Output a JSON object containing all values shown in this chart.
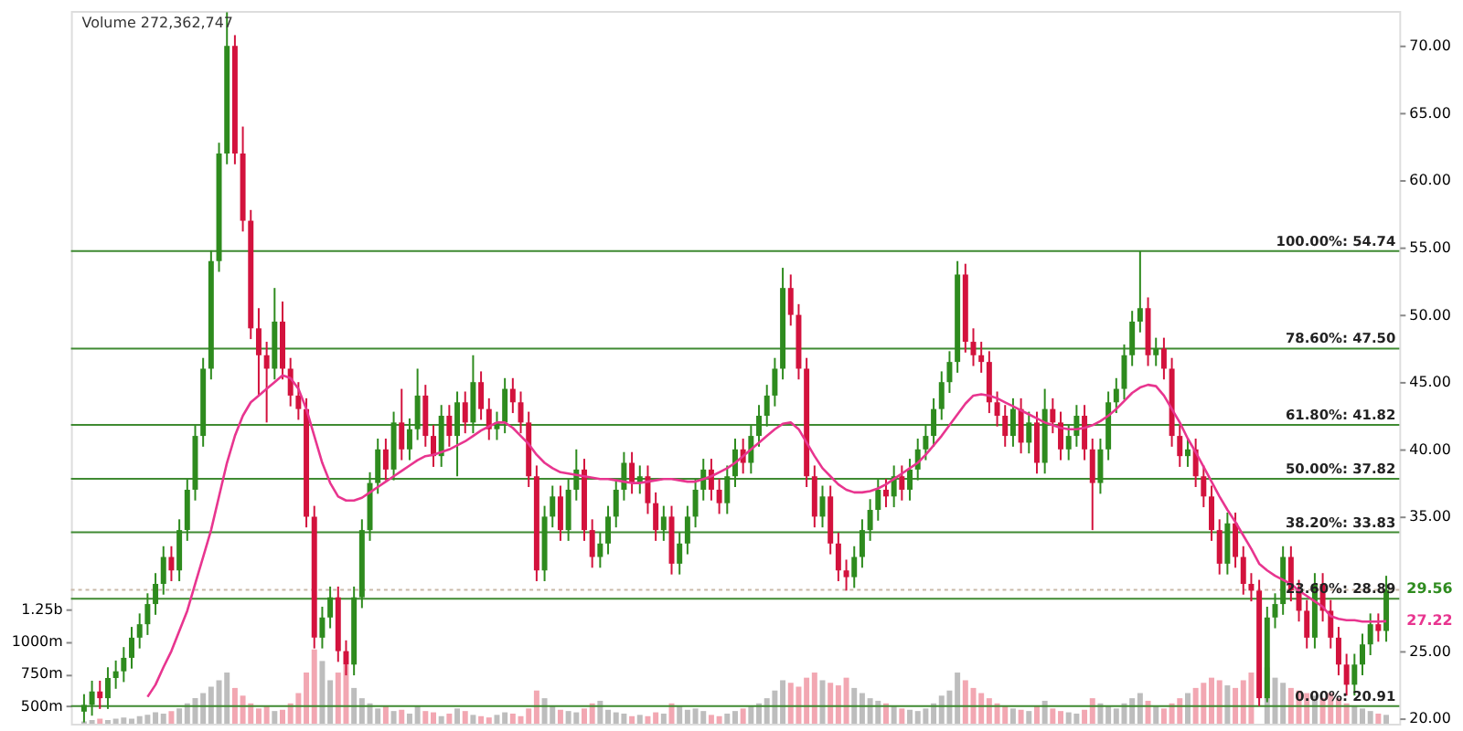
{
  "chart_data": {
    "type": "candlestick",
    "categories": [
      null,
      null,
      null,
      null,
      null,
      null,
      null,
      null,
      null,
      null,
      null,
      null,
      null,
      null,
      null,
      null,
      null,
      null,
      null,
      null,
      null,
      null,
      null,
      null,
      null,
      null,
      null,
      null,
      null,
      null,
      null,
      null,
      null,
      null,
      null,
      null,
      null,
      null,
      null,
      null,
      null,
      null,
      null,
      null,
      null,
      null,
      null,
      null,
      null,
      null,
      null,
      null,
      null,
      null,
      null,
      null,
      null,
      null,
      null,
      null,
      null,
      null,
      null,
      null,
      null,
      null,
      null,
      null,
      null,
      null,
      null,
      null,
      null,
      null,
      null,
      null,
      null,
      null,
      null,
      null,
      null,
      null,
      null,
      null,
      null,
      null,
      null,
      null,
      null,
      null,
      null,
      null,
      null,
      null,
      null,
      null,
      null,
      null,
      null,
      null,
      null,
      null,
      null,
      null,
      null,
      null,
      null,
      null,
      null,
      null,
      null,
      null,
      null,
      null,
      null,
      null,
      null,
      null,
      null,
      null,
      null,
      null,
      null,
      null,
      null,
      null,
      null,
      null,
      null,
      null,
      null,
      null,
      null,
      null,
      null,
      null,
      null,
      null,
      null,
      null,
      null,
      null,
      null,
      null,
      null,
      null,
      null,
      null,
      null,
      null,
      null,
      null,
      null,
      null,
      null,
      null,
      null,
      null,
      null,
      null,
      null,
      null,
      null,
      null,
      null
    ],
    "ohlc": [
      [
        20.5,
        21.8,
        19.7,
        21.0
      ],
      [
        21.0,
        22.8,
        20.2,
        22.0
      ],
      [
        22.0,
        22.8,
        20.7,
        21.5
      ],
      [
        21.5,
        23.8,
        20.7,
        23.0
      ],
      [
        23.0,
        24.3,
        22.2,
        23.5
      ],
      [
        23.5,
        25.3,
        22.7,
        24.5
      ],
      [
        24.5,
        26.8,
        23.7,
        26.0
      ],
      [
        26.0,
        27.8,
        25.2,
        27.0
      ],
      [
        27.0,
        29.3,
        26.2,
        28.5
      ],
      [
        28.5,
        30.8,
        27.7,
        30.0
      ],
      [
        30.0,
        32.8,
        29.2,
        32.0
      ],
      [
        32.0,
        32.8,
        30.2,
        31.0
      ],
      [
        31.0,
        34.8,
        30.2,
        34.0
      ],
      [
        34.0,
        37.8,
        33.2,
        37.0
      ],
      [
        37.0,
        41.8,
        36.2,
        41.0
      ],
      [
        41.0,
        46.8,
        40.2,
        46.0
      ],
      [
        46.0,
        54.8,
        45.2,
        54.0
      ],
      [
        54.0,
        62.8,
        53.2,
        62.0
      ],
      [
        62.0,
        72.5,
        61.2,
        70.0
      ],
      [
        70.0,
        70.8,
        61.2,
        62.0
      ],
      [
        62.0,
        64.0,
        56.2,
        57.0
      ],
      [
        57.0,
        57.8,
        48.2,
        49.0
      ],
      [
        49.0,
        50.5,
        44.0,
        47.0
      ],
      [
        47.0,
        48.0,
        42.0,
        46.0
      ],
      [
        46.0,
        52.0,
        45.2,
        49.5
      ],
      [
        49.5,
        51.0,
        45.2,
        46.0
      ],
      [
        46.0,
        46.8,
        43.2,
        44.0
      ],
      [
        44.0,
        45.0,
        42.2,
        43.0
      ],
      [
        43.0,
        43.8,
        34.2,
        35.0
      ],
      [
        35.0,
        35.8,
        25.2,
        26.0
      ],
      [
        26.0,
        28.3,
        25.2,
        27.5
      ],
      [
        27.5,
        29.8,
        26.7,
        29.0
      ],
      [
        29.0,
        29.8,
        24.2,
        25.0
      ],
      [
        25.0,
        25.8,
        23.2,
        24.0
      ],
      [
        24.0,
        29.8,
        23.2,
        29.0
      ],
      [
        29.0,
        34.8,
        28.2,
        34.0
      ],
      [
        34.0,
        38.3,
        33.2,
        37.5
      ],
      [
        37.5,
        40.8,
        36.7,
        40.0
      ],
      [
        40.0,
        40.8,
        37.7,
        38.5
      ],
      [
        38.5,
        42.8,
        37.7,
        42.0
      ],
      [
        42.0,
        44.5,
        39.2,
        40.0
      ],
      [
        40.0,
        42.3,
        39.2,
        41.5
      ],
      [
        41.5,
        46.0,
        40.7,
        44.0
      ],
      [
        44.0,
        44.8,
        40.2,
        41.0
      ],
      [
        41.0,
        41.8,
        38.7,
        39.5
      ],
      [
        39.5,
        43.3,
        38.7,
        42.5
      ],
      [
        42.5,
        43.3,
        40.2,
        41.0
      ],
      [
        41.0,
        44.3,
        38.0,
        43.5
      ],
      [
        43.5,
        44.3,
        41.2,
        42.0
      ],
      [
        42.0,
        47.0,
        41.2,
        45.0
      ],
      [
        45.0,
        45.8,
        42.2,
        43.0
      ],
      [
        43.0,
        43.8,
        40.7,
        41.5
      ],
      [
        41.5,
        42.8,
        40.7,
        42.0
      ],
      [
        42.0,
        45.3,
        41.2,
        44.5
      ],
      [
        44.5,
        45.3,
        42.7,
        43.5
      ],
      [
        43.5,
        44.3,
        41.2,
        42.0
      ],
      [
        42.0,
        42.8,
        37.2,
        38.0
      ],
      [
        38.0,
        38.8,
        30.2,
        31.0
      ],
      [
        31.0,
        35.8,
        30.2,
        35.0
      ],
      [
        35.0,
        37.3,
        34.2,
        36.5
      ],
      [
        36.5,
        37.3,
        33.2,
        34.0
      ],
      [
        34.0,
        37.8,
        33.2,
        37.0
      ],
      [
        37.0,
        40.0,
        36.2,
        38.5
      ],
      [
        38.5,
        39.3,
        33.2,
        34.0
      ],
      [
        34.0,
        34.8,
        31.2,
        32.0
      ],
      [
        32.0,
        33.8,
        31.2,
        33.0
      ],
      [
        33.0,
        35.8,
        32.2,
        35.0
      ],
      [
        35.0,
        37.8,
        34.2,
        37.0
      ],
      [
        37.0,
        39.8,
        36.2,
        39.0
      ],
      [
        39.0,
        39.8,
        36.7,
        37.5
      ],
      [
        37.5,
        38.8,
        36.7,
        38.0
      ],
      [
        38.0,
        38.8,
        35.2,
        36.0
      ],
      [
        36.0,
        36.8,
        33.2,
        34.0
      ],
      [
        34.0,
        35.8,
        33.2,
        35.0
      ],
      [
        35.0,
        35.8,
        30.7,
        31.5
      ],
      [
        31.5,
        33.8,
        30.7,
        33.0
      ],
      [
        33.0,
        35.8,
        32.2,
        35.0
      ],
      [
        35.0,
        37.8,
        34.2,
        37.0
      ],
      [
        37.0,
        39.3,
        36.2,
        38.5
      ],
      [
        38.5,
        39.3,
        36.2,
        37.0
      ],
      [
        37.0,
        37.8,
        35.2,
        36.0
      ],
      [
        36.0,
        38.8,
        35.2,
        38.0
      ],
      [
        38.0,
        40.8,
        37.2,
        40.0
      ],
      [
        40.0,
        40.8,
        38.2,
        39.0
      ],
      [
        39.0,
        41.8,
        38.2,
        41.0
      ],
      [
        41.0,
        43.3,
        40.2,
        42.5
      ],
      [
        42.5,
        44.8,
        41.7,
        44.0
      ],
      [
        44.0,
        46.8,
        43.2,
        46.0
      ],
      [
        46.0,
        53.5,
        45.2,
        52.0
      ],
      [
        52.0,
        53.0,
        49.2,
        50.0
      ],
      [
        50.0,
        50.8,
        45.2,
        46.0
      ],
      [
        46.0,
        46.8,
        37.2,
        38.0
      ],
      [
        38.0,
        38.8,
        34.2,
        35.0
      ],
      [
        35.0,
        37.3,
        34.2,
        36.5
      ],
      [
        36.5,
        37.3,
        32.2,
        33.0
      ],
      [
        33.0,
        33.8,
        30.2,
        31.0
      ],
      [
        31.0,
        31.8,
        29.5,
        30.5
      ],
      [
        30.5,
        32.8,
        29.7,
        32.0
      ],
      [
        32.0,
        34.8,
        31.2,
        34.0
      ],
      [
        34.0,
        36.3,
        33.2,
        35.5
      ],
      [
        35.5,
        37.8,
        34.7,
        37.0
      ],
      [
        37.0,
        37.8,
        35.7,
        36.5
      ],
      [
        36.5,
        38.8,
        35.7,
        38.0
      ],
      [
        38.0,
        38.8,
        36.2,
        37.0
      ],
      [
        37.0,
        39.3,
        36.2,
        38.5
      ],
      [
        38.5,
        40.8,
        37.7,
        40.0
      ],
      [
        40.0,
        41.8,
        39.2,
        41.0
      ],
      [
        41.0,
        43.8,
        40.2,
        43.0
      ],
      [
        43.0,
        45.8,
        42.2,
        45.0
      ],
      [
        45.0,
        47.3,
        44.2,
        46.5
      ],
      [
        46.5,
        54.0,
        45.7,
        53.0
      ],
      [
        53.0,
        53.8,
        47.2,
        48.0
      ],
      [
        48.0,
        49.0,
        46.2,
        47.0
      ],
      [
        47.0,
        48.0,
        45.7,
        46.5
      ],
      [
        46.5,
        47.3,
        42.7,
        43.5
      ],
      [
        43.5,
        44.3,
        41.7,
        42.5
      ],
      [
        42.5,
        43.3,
        40.2,
        41.0
      ],
      [
        41.0,
        43.8,
        40.2,
        43.0
      ],
      [
        43.0,
        43.8,
        39.7,
        40.5
      ],
      [
        40.5,
        42.8,
        39.7,
        42.0
      ],
      [
        42.0,
        42.8,
        38.2,
        39.0
      ],
      [
        39.0,
        44.5,
        38.2,
        43.0
      ],
      [
        43.0,
        43.8,
        41.2,
        42.0
      ],
      [
        42.0,
        42.8,
        39.2,
        40.0
      ],
      [
        40.0,
        41.8,
        39.2,
        41.0
      ],
      [
        41.0,
        43.3,
        40.2,
        42.5
      ],
      [
        42.5,
        43.3,
        39.2,
        40.0
      ],
      [
        40.0,
        40.8,
        34.0,
        37.5
      ],
      [
        37.5,
        40.8,
        36.7,
        40.0
      ],
      [
        40.0,
        44.3,
        39.2,
        43.5
      ],
      [
        43.5,
        45.3,
        42.7,
        44.5
      ],
      [
        44.5,
        47.8,
        43.7,
        47.0
      ],
      [
        47.0,
        50.3,
        46.2,
        49.5
      ],
      [
        49.5,
        54.74,
        48.7,
        50.5
      ],
      [
        50.5,
        51.3,
        46.2,
        47.0
      ],
      [
        47.0,
        48.3,
        46.2,
        47.5
      ],
      [
        47.5,
        48.3,
        45.2,
        46.0
      ],
      [
        46.0,
        46.8,
        40.2,
        41.0
      ],
      [
        41.0,
        41.8,
        38.7,
        39.5
      ],
      [
        39.5,
        40.8,
        38.7,
        40.0
      ],
      [
        40.0,
        40.8,
        37.2,
        38.0
      ],
      [
        38.0,
        38.8,
        35.7,
        36.5
      ],
      [
        36.5,
        37.3,
        33.2,
        34.0
      ],
      [
        34.0,
        34.8,
        30.7,
        31.5
      ],
      [
        31.5,
        35.3,
        30.7,
        34.5
      ],
      [
        34.5,
        35.3,
        31.2,
        32.0
      ],
      [
        32.0,
        32.8,
        29.2,
        30.0
      ],
      [
        30.0,
        30.8,
        28.7,
        29.5
      ],
      [
        29.5,
        30.3,
        20.91,
        21.5
      ],
      [
        21.5,
        28.3,
        21.2,
        27.5
      ],
      [
        27.5,
        29.3,
        26.7,
        28.5
      ],
      [
        28.5,
        32.8,
        27.7,
        32.0
      ],
      [
        32.0,
        32.8,
        28.7,
        29.5
      ],
      [
        29.5,
        30.3,
        27.2,
        28.0
      ],
      [
        28.0,
        28.8,
        25.2,
        26.0
      ],
      [
        26.0,
        30.8,
        25.2,
        30.0
      ],
      [
        30.0,
        30.8,
        27.2,
        28.0
      ],
      [
        28.0,
        28.8,
        25.2,
        26.0
      ],
      [
        26.0,
        26.8,
        23.2,
        24.0
      ],
      [
        24.0,
        24.8,
        21.7,
        22.5
      ],
      [
        22.5,
        24.8,
        21.7,
        24.0
      ],
      [
        24.0,
        26.3,
        23.2,
        25.5
      ],
      [
        25.5,
        27.8,
        24.7,
        27.0
      ],
      [
        27.0,
        27.8,
        25.7,
        26.5
      ],
      [
        26.5,
        30.6,
        25.7,
        29.56
      ]
    ],
    "colors": [
      "#2e8b1e",
      "#2e8b1e",
      "#d3123d",
      "#2e8b1e",
      "#2e8b1e",
      "#2e8b1e",
      "#2e8b1e",
      "#2e8b1e",
      "#2e8b1e",
      "#2e8b1e",
      "#2e8b1e",
      "#d3123d",
      "#2e8b1e",
      "#2e8b1e",
      "#2e8b1e",
      "#2e8b1e",
      "#2e8b1e",
      "#2e8b1e",
      "#2e8b1e",
      "#d3123d",
      "#d3123d",
      "#d3123d",
      "#d3123d",
      "#d3123d",
      "#2e8b1e",
      "#d3123d",
      "#d3123d",
      "#d3123d",
      "#d3123d",
      "#d3123d",
      "#2e8b1e",
      "#2e8b1e",
      "#d3123d",
      "#d3123d",
      "#2e8b1e",
      "#2e8b1e",
      "#2e8b1e",
      "#2e8b1e",
      "#d3123d",
      "#2e8b1e",
      "#d3123d",
      "#2e8b1e",
      "#2e8b1e",
      "#d3123d",
      "#d3123d",
      "#2e8b1e",
      "#d3123d",
      "#2e8b1e",
      "#d3123d",
      "#2e8b1e",
      "#d3123d",
      "#d3123d",
      "#2e8b1e",
      "#2e8b1e",
      "#d3123d",
      "#d3123d",
      "#d3123d",
      "#d3123d",
      "#2e8b1e",
      "#2e8b1e",
      "#d3123d",
      "#2e8b1e",
      "#2e8b1e",
      "#d3123d",
      "#d3123d",
      "#2e8b1e",
      "#2e8b1e",
      "#2e8b1e",
      "#2e8b1e",
      "#d3123d",
      "#2e8b1e",
      "#d3123d",
      "#d3123d",
      "#2e8b1e",
      "#d3123d",
      "#2e8b1e",
      "#2e8b1e",
      "#2e8b1e",
      "#2e8b1e",
      "#d3123d",
      "#d3123d",
      "#2e8b1e",
      "#2e8b1e",
      "#d3123d",
      "#2e8b1e",
      "#2e8b1e",
      "#2e8b1e",
      "#2e8b1e",
      "#2e8b1e",
      "#d3123d",
      "#d3123d",
      "#d3123d",
      "#d3123d",
      "#2e8b1e",
      "#d3123d",
      "#d3123d",
      "#d3123d",
      "#2e8b1e",
      "#2e8b1e",
      "#2e8b1e",
      "#2e8b1e",
      "#d3123d",
      "#2e8b1e",
      "#d3123d",
      "#2e8b1e",
      "#2e8b1e",
      "#2e8b1e",
      "#2e8b1e",
      "#2e8b1e",
      "#2e8b1e",
      "#2e8b1e",
      "#d3123d",
      "#d3123d",
      "#d3123d",
      "#d3123d",
      "#d3123d",
      "#d3123d",
      "#2e8b1e",
      "#d3123d",
      "#2e8b1e",
      "#d3123d",
      "#2e8b1e",
      "#d3123d",
      "#d3123d",
      "#2e8b1e",
      "#2e8b1e",
      "#d3123d",
      "#d3123d",
      "#2e8b1e",
      "#2e8b1e",
      "#2e8b1e",
      "#2e8b1e",
      "#2e8b1e",
      "#2e8b1e",
      "#d3123d",
      "#2e8b1e",
      "#d3123d",
      "#d3123d",
      "#d3123d",
      "#2e8b1e",
      "#d3123d",
      "#d3123d",
      "#d3123d",
      "#d3123d",
      "#2e8b1e",
      "#d3123d",
      "#d3123d",
      "#d3123d",
      "#d3123d",
      "#2e8b1e",
      "#2e8b1e",
      "#2e8b1e",
      "#d3123d",
      "#d3123d",
      "#d3123d",
      "#2e8b1e",
      "#d3123d",
      "#d3123d",
      "#d3123d",
      "#d3123d",
      "#2e8b1e",
      "#2e8b1e",
      "#2e8b1e",
      "#d3123d",
      "#2e8b1e"
    ],
    "ylim": [
      19.6,
      72.6
    ],
    "yticks": [
      {
        "value": 20,
        "label": "20.00"
      },
      {
        "value": 25,
        "label": "25.00"
      },
      {
        "value": 35,
        "label": "35.00"
      },
      {
        "value": 40,
        "label": "40.00"
      },
      {
        "value": 45,
        "label": "45.00"
      },
      {
        "value": 50,
        "label": "50.00"
      },
      {
        "value": 55,
        "label": "55.00"
      },
      {
        "value": 60,
        "label": "60.00"
      },
      {
        "value": 65,
        "label": "65.00"
      },
      {
        "value": 70,
        "label": "70.00"
      }
    ],
    "y2lim": [
      361000000.0,
      5917000000.0
    ],
    "y2ticks": [
      {
        "value": 500000000.0,
        "label": "500m"
      },
      {
        "value": 750000000.0,
        "label": "750m"
      },
      {
        "value": 1000000000.0,
        "label": "1000m"
      },
      {
        "value": 1250000000.0,
        "label": "1.25b"
      }
    ],
    "series": [
      {
        "type": "line",
        "color": "#e8358f",
        "values": [
          null,
          null,
          null,
          null,
          null,
          null,
          null,
          null,
          21.6,
          22.5,
          23.8,
          25.0,
          26.5,
          28.0,
          30.0,
          32.0,
          34.0,
          36.5,
          39.0,
          41.0,
          42.5,
          43.5,
          44.0,
          44.5,
          45.0,
          45.5,
          45.3,
          44.5,
          43.0,
          41.0,
          39.0,
          37.5,
          36.5,
          36.2,
          36.2,
          36.4,
          36.8,
          37.2,
          37.6,
          38.0,
          38.4,
          38.8,
          39.2,
          39.5,
          39.6,
          39.8,
          40.0,
          40.3,
          40.6,
          41.0,
          41.4,
          41.7,
          42.0,
          42.0,
          41.6,
          41.0,
          40.4,
          39.6,
          39.0,
          38.6,
          38.3,
          38.2,
          38.1,
          38.0,
          37.9,
          37.8,
          37.8,
          37.7,
          37.6,
          37.5,
          37.5,
          37.6,
          37.7,
          37.8,
          37.8,
          37.7,
          37.6,
          37.6,
          37.8,
          38.0,
          38.3,
          38.6,
          39.0,
          39.5,
          40.0,
          40.5,
          41.0,
          41.5,
          41.9,
          42.0,
          41.5,
          40.5,
          39.5,
          38.6,
          38.0,
          37.4,
          37.0,
          36.8,
          36.8,
          36.9,
          37.1,
          37.4,
          37.8,
          38.2,
          38.6,
          39.0,
          39.6,
          40.3,
          41.0,
          41.8,
          42.6,
          43.4,
          44.0,
          44.1,
          44.0,
          43.8,
          43.5,
          43.2,
          42.9,
          42.6,
          42.3,
          42.0,
          41.8,
          41.6,
          41.5,
          41.5,
          41.6,
          41.8,
          42.1,
          42.5,
          43.0,
          43.6,
          44.2,
          44.6,
          44.8,
          44.7,
          44.0,
          43.0,
          42.0,
          40.8,
          39.8,
          38.7,
          37.6,
          36.5,
          35.5,
          34.6,
          33.6,
          32.6,
          31.5,
          31.0,
          30.6,
          30.3,
          30.0,
          29.5,
          29.1,
          28.7,
          28.3,
          27.6,
          27.4,
          27.3,
          27.3,
          27.2,
          27.2,
          27.2,
          27.22
        ],
        "value_labels": [
          null,
          null,
          null,
          null,
          null,
          null,
          null,
          null,
          null,
          null,
          null,
          null,
          null,
          null,
          null,
          null,
          null,
          null,
          null,
          null,
          null,
          null,
          null,
          null,
          null,
          null,
          null,
          null,
          null,
          null,
          null,
          null,
          null,
          null,
          null,
          null,
          null,
          null,
          null,
          null,
          null,
          null,
          null,
          null,
          null,
          null,
          null,
          null,
          null,
          null,
          null,
          null,
          null,
          null,
          null,
          null,
          null,
          null,
          null,
          null,
          null,
          null,
          null,
          null,
          null,
          null,
          null,
          null,
          null,
          null,
          null,
          null,
          null,
          null,
          null,
          null,
          null,
          null,
          null,
          null,
          null,
          null,
          null,
          null,
          null,
          null,
          null,
          null,
          null,
          null,
          null,
          null,
          null,
          null,
          null,
          null,
          null,
          null,
          null,
          null,
          null,
          null,
          null,
          null,
          null,
          null,
          null,
          null,
          null,
          null,
          null,
          null,
          null,
          null,
          null,
          null,
          null,
          null,
          null,
          null,
          null,
          null,
          null,
          null,
          null,
          null,
          null,
          null,
          null,
          null,
          null,
          null,
          null,
          null,
          null,
          null,
          null,
          null,
          null,
          null,
          null,
          null,
          null,
          null,
          null,
          null,
          null,
          null,
          null,
          null,
          null,
          null,
          null,
          null,
          null,
          null,
          null,
          null,
          null,
          null,
          null,
          null,
          null,
          null,
          "27.22"
        ]
      },
      {
        "type": "bar",
        "axis": "y2",
        "values": [
          380000000.0,
          390000000.0,
          400000000.0,
          390000000.0,
          400000000.0,
          410000000.0,
          400000000.0,
          420000000.0,
          430000000.0,
          450000000.0,
          440000000.0,
          460000000.0,
          480000000.0,
          520000000.0,
          560000000.0,
          600000000.0,
          650000000.0,
          700000000.0,
          760000000.0,
          640000000.0,
          580000000.0,
          520000000.0,
          480000000.0,
          500000000.0,
          460000000.0,
          470000000.0,
          520000000.0,
          600000000.0,
          760000000.0,
          940000000.0,
          850000000.0,
          700000000.0,
          760000000.0,
          820000000.0,
          640000000.0,
          560000000.0,
          520000000.0,
          480000000.0,
          500000000.0,
          460000000.0,
          470000000.0,
          440000000.0,
          500000000.0,
          460000000.0,
          450000000.0,
          420000000.0,
          440000000.0,
          480000000.0,
          460000000.0,
          430000000.0,
          420000000.0,
          410000000.0,
          430000000.0,
          450000000.0,
          440000000.0,
          420000000.0,
          480000000.0,
          620000000.0,
          560000000.0,
          500000000.0,
          470000000.0,
          460000000.0,
          450000000.0,
          480000000.0,
          520000000.0,
          540000000.0,
          470000000.0,
          450000000.0,
          440000000.0,
          420000000.0,
          430000000.0,
          420000000.0,
          450000000.0,
          440000000.0,
          520000000.0,
          500000000.0,
          470000000.0,
          480000000.0,
          460000000.0,
          430000000.0,
          420000000.0,
          440000000.0,
          460000000.0,
          480000000.0,
          500000000.0,
          520000000.0,
          560000000.0,
          620000000.0,
          700000000.0,
          680000000.0,
          650000000.0,
          720000000.0,
          760000000.0,
          700000000.0,
          680000000.0,
          660000000.0,
          720000000.0,
          640000000.0,
          600000000.0,
          560000000.0,
          540000000.0,
          520000000.0,
          500000000.0,
          480000000.0,
          470000000.0,
          460000000.0,
          480000000.0,
          520000000.0,
          580000000.0,
          620000000.0,
          760000000.0,
          700000000.0,
          640000000.0,
          600000000.0,
          560000000.0,
          520000000.0,
          500000000.0,
          480000000.0,
          470000000.0,
          460000000.0,
          500000000.0,
          540000000.0,
          480000000.0,
          460000000.0,
          450000000.0,
          440000000.0,
          470000000.0,
          560000000.0,
          520000000.0,
          500000000.0,
          480000000.0,
          520000000.0,
          560000000.0,
          600000000.0,
          540000000.0,
          500000000.0,
          480000000.0,
          520000000.0,
          560000000.0,
          600000000.0,
          640000000.0,
          680000000.0,
          720000000.0,
          700000000.0,
          660000000.0,
          640000000.0,
          700000000.0,
          760000000.0,
          null,
          800000000.0,
          720000000.0,
          680000000.0,
          640000000.0,
          620000000.0,
          600000000.0,
          580000000.0,
          560000000.0,
          600000000.0,
          560000000.0,
          520000000.0,
          500000000.0,
          480000000.0,
          460000000.0,
          440000000.0,
          430000000.0
        ],
        "colors": [
          "#bdbdbd",
          "#bdbdbd",
          "#f2a7b2",
          "#bdbdbd",
          "#bdbdbd",
          "#bdbdbd",
          "#bdbdbd",
          "#bdbdbd",
          "#bdbdbd",
          "#bdbdbd",
          "#bdbdbd",
          "#f2a7b2",
          "#bdbdbd",
          "#bdbdbd",
          "#bdbdbd",
          "#bdbdbd",
          "#bdbdbd",
          "#bdbdbd",
          "#bdbdbd",
          "#f2a7b2",
          "#f2a7b2",
          "#f2a7b2",
          "#f2a7b2",
          "#f2a7b2",
          "#bdbdbd",
          "#f2a7b2",
          "#f2a7b2",
          "#f2a7b2",
          "#f2a7b2",
          "#f2a7b2",
          "#bdbdbd",
          "#bdbdbd",
          "#f2a7b2",
          "#f2a7b2",
          "#bdbdbd",
          "#bdbdbd",
          "#bdbdbd",
          "#bdbdbd",
          "#f2a7b2",
          "#bdbdbd",
          "#f2a7b2",
          "#bdbdbd",
          "#bdbdbd",
          "#f2a7b2",
          "#f2a7b2",
          "#bdbdbd",
          "#f2a7b2",
          "#bdbdbd",
          "#f2a7b2",
          "#bdbdbd",
          "#f2a7b2",
          "#f2a7b2",
          "#bdbdbd",
          "#bdbdbd",
          "#f2a7b2",
          "#f2a7b2",
          "#f2a7b2",
          "#f2a7b2",
          "#bdbdbd",
          "#bdbdbd",
          "#f2a7b2",
          "#bdbdbd",
          "#bdbdbd",
          "#f2a7b2",
          "#f2a7b2",
          "#bdbdbd",
          "#bdbdbd",
          "#bdbdbd",
          "#bdbdbd",
          "#f2a7b2",
          "#bdbdbd",
          "#f2a7b2",
          "#f2a7b2",
          "#bdbdbd",
          "#f2a7b2",
          "#bdbdbd",
          "#bdbdbd",
          "#bdbdbd",
          "#bdbdbd",
          "#f2a7b2",
          "#f2a7b2",
          "#bdbdbd",
          "#bdbdbd",
          "#f2a7b2",
          "#bdbdbd",
          "#bdbdbd",
          "#bdbdbd",
          "#bdbdbd",
          "#bdbdbd",
          "#f2a7b2",
          "#f2a7b2",
          "#f2a7b2",
          "#f2a7b2",
          "#bdbdbd",
          "#f2a7b2",
          "#f2a7b2",
          "#f2a7b2",
          "#bdbdbd",
          "#bdbdbd",
          "#bdbdbd",
          "#bdbdbd",
          "#f2a7b2",
          "#bdbdbd",
          "#f2a7b2",
          "#bdbdbd",
          "#bdbdbd",
          "#bdbdbd",
          "#bdbdbd",
          "#bdbdbd",
          "#bdbdbd",
          "#bdbdbd",
          "#f2a7b2",
          "#f2a7b2",
          "#f2a7b2",
          "#f2a7b2",
          "#f2a7b2",
          "#f2a7b2",
          "#bdbdbd",
          "#f2a7b2",
          "#bdbdbd",
          "#f2a7b2",
          "#bdbdbd",
          "#f2a7b2",
          "#f2a7b2",
          "#bdbdbd",
          "#bdbdbd",
          "#f2a7b2",
          "#f2a7b2",
          "#bdbdbd",
          "#bdbdbd",
          "#bdbdbd",
          "#bdbdbd",
          "#bdbdbd",
          "#bdbdbd",
          "#f2a7b2",
          "#bdbdbd",
          "#f2a7b2",
          "#f2a7b2",
          "#f2a7b2",
          "#bdbdbd",
          "#f2a7b2",
          "#f2a7b2",
          "#f2a7b2",
          "#f2a7b2",
          "#bdbdbd",
          "#f2a7b2",
          "#f2a7b2",
          "#f2a7b2",
          "#f2a7b2",
          "#bdbdbd",
          "#bdbdbd",
          "#bdbdbd",
          "#f2a7b2",
          "#f2a7b2",
          "#f2a7b2",
          "#bdbdbd",
          "#f2a7b2",
          "#f2a7b2",
          "#f2a7b2",
          "#f2a7b2",
          "#bdbdbd",
          "#bdbdbd",
          "#bdbdbd",
          "#f2a7b2",
          "#bdbdbd"
        ]
      }
    ],
    "ref_lines": [
      {
        "axis": "y",
        "value": 54.74,
        "label": "100.00%: 54.74",
        "color": "#3f8a32"
      },
      {
        "axis": "y",
        "value": 47.5,
        "label": "78.60%: 47.50",
        "color": "#3f8a32"
      },
      {
        "axis": "y",
        "value": 41.82,
        "label": "61.80%: 41.82",
        "color": "#3f8a32"
      },
      {
        "axis": "y",
        "value": 37.82,
        "label": "50.00%: 37.82",
        "color": "#3f8a32"
      },
      {
        "axis": "y",
        "value": 33.83,
        "label": "38.20%: 33.83",
        "color": "#3f8a32"
      },
      {
        "axis": "y",
        "value": 28.89,
        "label": "23.60%: 28.89",
        "color": "#3f8a32"
      },
      {
        "axis": "y",
        "value": 20.91,
        "label": "0.00%: 20.91",
        "color": "#3f8a32"
      },
      {
        "axis": "y",
        "value": 29.56,
        "label": "29.56",
        "color": "#c9b9a8",
        "line_style": "dotted"
      }
    ],
    "annotations": [
      "Volume 272,362,747"
    ]
  }
}
